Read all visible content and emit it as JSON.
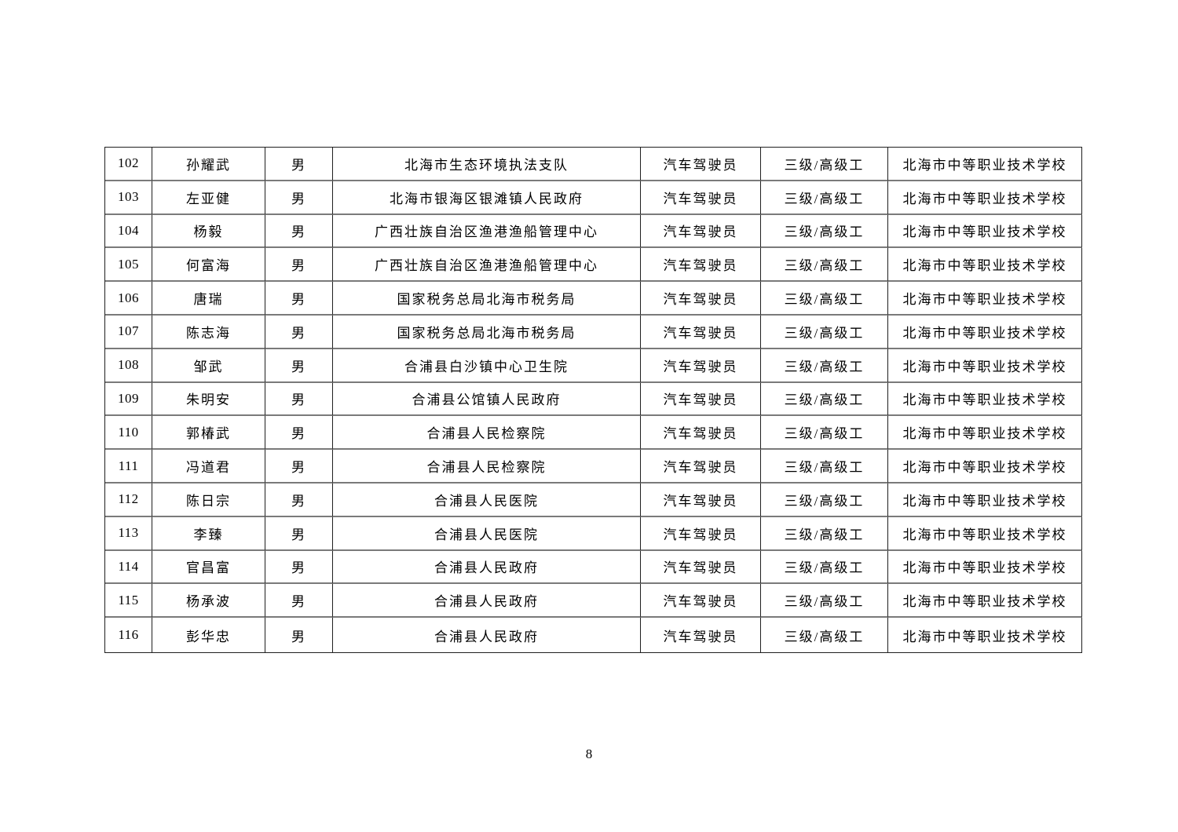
{
  "page": {
    "number": "8",
    "background_color": "#ffffff"
  },
  "colors": {
    "text": "#000000",
    "grid_line": "#1f1f1f",
    "row_separator": "#7a7a7a"
  },
  "table": {
    "rows": [
      {
        "no": "102",
        "name": "孙耀武",
        "gender": "男",
        "organization": "北海市生态环境执法支队",
        "occupation": "汽车驾驶员",
        "level": "三级/高级工",
        "institution": "北海市中等职业技术学校"
      },
      {
        "no": "103",
        "name": "左亚健",
        "gender": "男",
        "organization": "北海市银海区银滩镇人民政府",
        "occupation": "汽车驾驶员",
        "level": "三级/高级工",
        "institution": "北海市中等职业技术学校"
      },
      {
        "no": "104",
        "name": "杨毅",
        "gender": "男",
        "organization": "广西壮族自治区渔港渔船管理中心",
        "occupation": "汽车驾驶员",
        "level": "三级/高级工",
        "institution": "北海市中等职业技术学校"
      },
      {
        "no": "105",
        "name": "何富海",
        "gender": "男",
        "organization": "广西壮族自治区渔港渔船管理中心",
        "occupation": "汽车驾驶员",
        "level": "三级/高级工",
        "institution": "北海市中等职业技术学校"
      },
      {
        "no": "106",
        "name": "唐瑞",
        "gender": "男",
        "organization": "国家税务总局北海市税务局",
        "occupation": "汽车驾驶员",
        "level": "三级/高级工",
        "institution": "北海市中等职业技术学校"
      },
      {
        "no": "107",
        "name": "陈志海",
        "gender": "男",
        "organization": "国家税务总局北海市税务局",
        "occupation": "汽车驾驶员",
        "level": "三级/高级工",
        "institution": "北海市中等职业技术学校"
      },
      {
        "no": "108",
        "name": "邹武",
        "gender": "男",
        "organization": "合浦县白沙镇中心卫生院",
        "occupation": "汽车驾驶员",
        "level": "三级/高级工",
        "institution": "北海市中等职业技术学校"
      },
      {
        "no": "109",
        "name": "朱明安",
        "gender": "男",
        "organization": "合浦县公馆镇人民政府",
        "occupation": "汽车驾驶员",
        "level": "三级/高级工",
        "institution": "北海市中等职业技术学校"
      },
      {
        "no": "110",
        "name": "郭椿武",
        "gender": "男",
        "organization": "合浦县人民检察院",
        "occupation": "汽车驾驶员",
        "level": "三级/高级工",
        "institution": "北海市中等职业技术学校"
      },
      {
        "no": "111",
        "name": "冯道君",
        "gender": "男",
        "organization": "合浦县人民检察院",
        "occupation": "汽车驾驶员",
        "level": "三级/高级工",
        "institution": "北海市中等职业技术学校"
      },
      {
        "no": "112",
        "name": "陈日宗",
        "gender": "男",
        "organization": "合浦县人民医院",
        "occupation": "汽车驾驶员",
        "level": "三级/高级工",
        "institution": "北海市中等职业技术学校"
      },
      {
        "no": "113",
        "name": "李臻",
        "gender": "男",
        "organization": "合浦县人民医院",
        "occupation": "汽车驾驶员",
        "level": "三级/高级工",
        "institution": "北海市中等职业技术学校"
      },
      {
        "no": "114",
        "name": "官昌富",
        "gender": "男",
        "organization": "合浦县人民政府",
        "occupation": "汽车驾驶员",
        "level": "三级/高级工",
        "institution": "北海市中等职业技术学校"
      },
      {
        "no": "115",
        "name": "杨承波",
        "gender": "男",
        "organization": "合浦县人民政府",
        "occupation": "汽车驾驶员",
        "level": "三级/高级工",
        "institution": "北海市中等职业技术学校"
      },
      {
        "no": "116",
        "name": "彭华忠",
        "gender": "男",
        "organization": "合浦县人民政府",
        "occupation": "汽车驾驶员",
        "level": "三级/高级工",
        "institution": "北海市中等职业技术学校"
      }
    ]
  }
}
